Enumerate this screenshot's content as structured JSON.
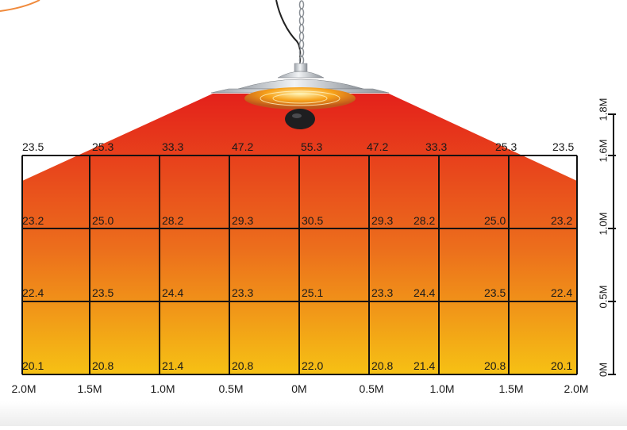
{
  "grid": {
    "columns": 8,
    "rows": 3,
    "temperature_rows": [
      [
        "23.5",
        "25.3",
        "33.3",
        "47.2",
        "55.3",
        "47.2",
        "33.3",
        "25.3",
        "23.5"
      ],
      [
        "23.2",
        "25.0",
        "28.2",
        "29.3",
        "30.5",
        "29.3",
        "28.2",
        "25.0",
        "23.2"
      ],
      [
        "22.4",
        "23.5",
        "24.4",
        "23.3",
        "25.1",
        "23.3",
        "24.4",
        "23.5",
        "22.4"
      ],
      [
        "20.1",
        "20.8",
        "21.4",
        "20.8",
        "22.0",
        "20.8",
        "21.4",
        "20.8",
        "20.1"
      ]
    ]
  },
  "x_axis": {
    "labels": [
      "2.0M",
      "1.5M",
      "1.0M",
      "0.5M",
      "0M",
      "0.5M",
      "1.0M",
      "1.5M",
      "2.0M"
    ]
  },
  "y_axis": {
    "labels": [
      "1.8M",
      "1.6M",
      "1.0M",
      "0.5M",
      "0M"
    ]
  },
  "colors": {
    "heat_top": "#e4211b",
    "heat_mid": "#ec6e1c",
    "heat_bottom": "#f6c114",
    "grid_line": "#111111",
    "lamp_silver": "#cfd3d8",
    "glow": "#f7a21b"
  }
}
